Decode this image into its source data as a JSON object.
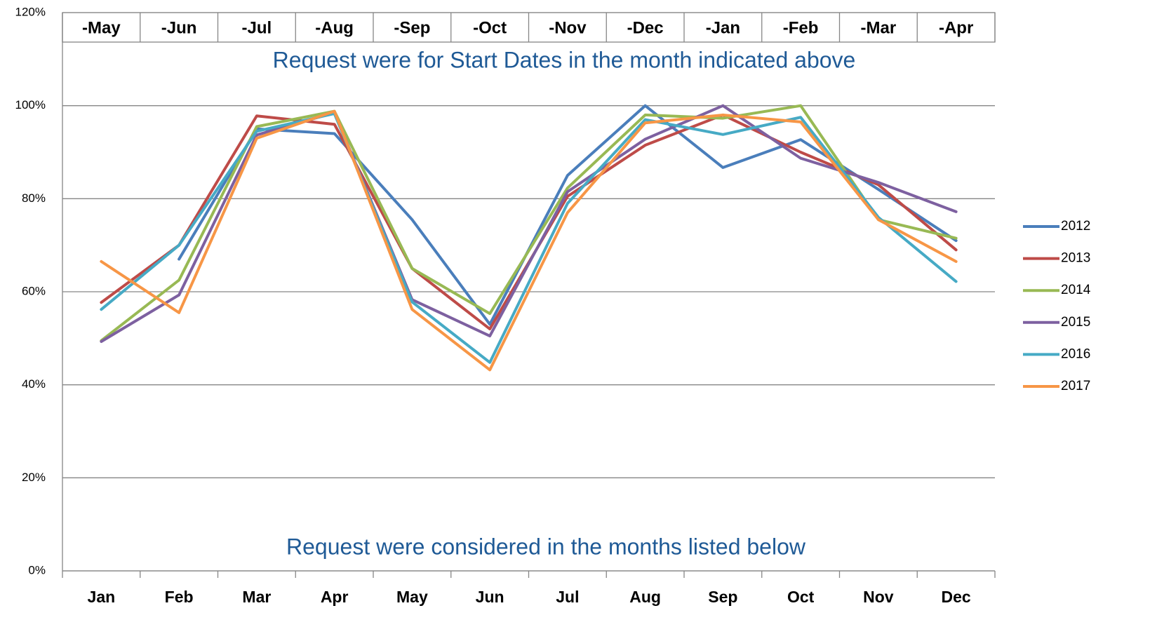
{
  "chart_data": {
    "type": "line",
    "categories": [
      "Jan",
      "Feb",
      "Mar",
      "Apr",
      "May",
      "Jun",
      "Jul",
      "Aug",
      "Sep",
      "Oct",
      "Nov",
      "Dec"
    ],
    "top_labels": [
      "-May",
      "-Jun",
      "-Jul",
      "-Aug",
      "-Sep",
      "-Oct",
      "-Nov",
      "-Dec",
      "-Jan",
      "-Feb",
      "-Mar",
      "-Apr"
    ],
    "annotations": [
      "Request were for Start Dates in the month indicated above",
      "Request were considered in the months listed below"
    ],
    "ylim": [
      0,
      120
    ],
    "yticks": [
      {
        "value": 0,
        "label": "0%"
      },
      {
        "value": 20,
        "label": "20%"
      },
      {
        "value": 40,
        "label": "40%"
      },
      {
        "value": 60,
        "label": "60%"
      },
      {
        "value": 80,
        "label": "80%"
      },
      {
        "value": 100,
        "label": "100%"
      },
      {
        "value": 120,
        "label": "120%"
      }
    ],
    "grid": true,
    "legend": "right",
    "series": [
      {
        "name": "2012",
        "color": "#4a7ebb",
        "values": [
          null,
          67,
          95,
          94,
          75.5,
          53,
          85,
          100,
          86.7,
          92.7,
          82,
          71
        ]
      },
      {
        "name": "2013",
        "color": "#be4b48",
        "values": [
          57.7,
          70,
          97.8,
          96,
          65,
          52,
          80.5,
          91.5,
          98,
          90,
          83,
          69
        ]
      },
      {
        "name": "2014",
        "color": "#98b954",
        "values": [
          49.5,
          62.5,
          95.5,
          98.8,
          65,
          55.3,
          82.3,
          98,
          97.3,
          100,
          75.5,
          71.5
        ]
      },
      {
        "name": "2015",
        "color": "#7d60a0",
        "values": [
          49.3,
          59.3,
          93.7,
          98.5,
          58.3,
          50.5,
          81.5,
          92.8,
          100,
          88.7,
          83.5,
          77.2
        ]
      },
      {
        "name": "2016",
        "color": "#46aac5",
        "values": [
          56.2,
          70,
          94.5,
          98.3,
          57.8,
          44.8,
          79,
          97,
          93.8,
          97.5,
          76,
          62.2
        ]
      },
      {
        "name": "2017",
        "color": "#f79646",
        "values": [
          66.5,
          55.5,
          93,
          98.8,
          56.2,
          43.2,
          77,
          96.3,
          98,
          96.5,
          75.5,
          66.5
        ]
      }
    ]
  }
}
